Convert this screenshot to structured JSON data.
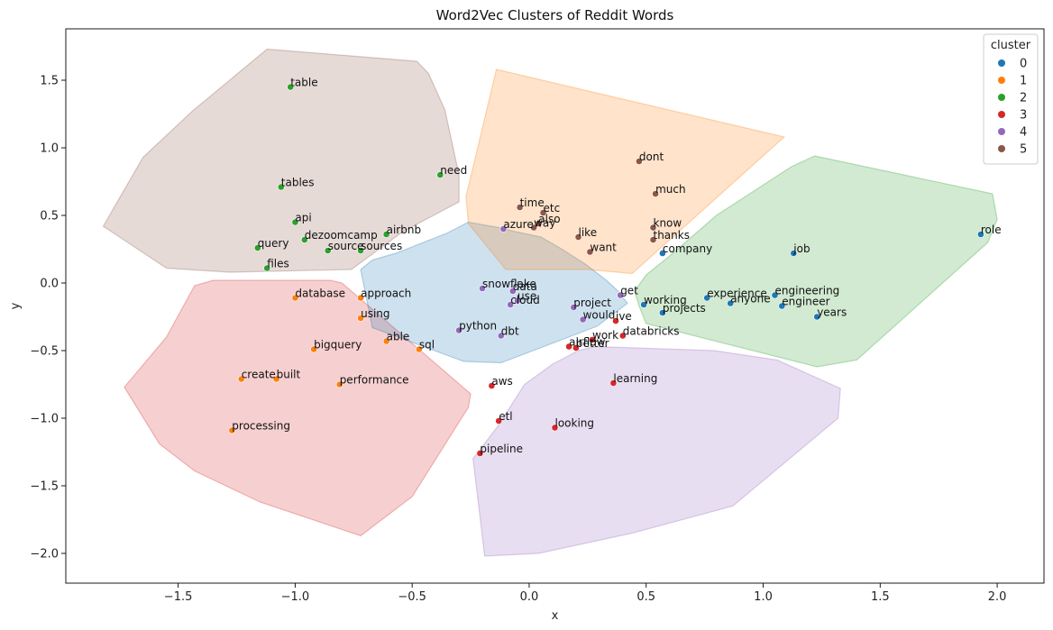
{
  "chart_data": {
    "type": "scatter",
    "title": "Word2Vec Clusters of Reddit Words",
    "xlabel": "x",
    "ylabel": "y",
    "xlim": [
      -1.98,
      2.2
    ],
    "ylim": [
      -2.22,
      1.88
    ],
    "xticks": [
      -1.5,
      -1.0,
      -0.5,
      0.0,
      0.5,
      1.0,
      1.5,
      2.0
    ],
    "xtick_labels": [
      "−1.5",
      "−1.0",
      "−0.5",
      "0.0",
      "0.5",
      "1.0",
      "1.5",
      "2.0"
    ],
    "yticks": [
      1.5,
      1.0,
      0.5,
      0.0,
      -0.5,
      -1.0,
      -1.5,
      -2.0
    ],
    "ytick_labels": [
      "1.5",
      "1.0",
      "0.5",
      "0.0",
      "−0.5",
      "−1.0",
      "−1.5",
      "−2.0"
    ],
    "grid": false,
    "legend": {
      "title": "cluster",
      "placement": "top-right",
      "entries": [
        "0",
        "1",
        "2",
        "3",
        "4",
        "5"
      ]
    },
    "cluster_colors": [
      "#1f77b4",
      "#ff7f0e",
      "#2ca02c",
      "#d62728",
      "#9467bd",
      "#8c564b"
    ],
    "hull_colors": [
      "#2ca02c",
      "#d62728",
      "#8c564b",
      "#9467bd",
      "#1f77b4",
      "#ff7f0e"
    ],
    "hulls": [
      [
        [
          1.22,
          0.94
        ],
        [
          1.98,
          0.66
        ],
        [
          2.0,
          0.47
        ],
        [
          1.96,
          0.3
        ],
        [
          1.4,
          -0.57
        ],
        [
          1.23,
          -0.62
        ],
        [
          0.5,
          -0.3
        ],
        [
          0.47,
          -0.17
        ],
        [
          0.45,
          -0.06
        ],
        [
          0.5,
          0.06
        ],
        [
          0.6,
          0.2
        ],
        [
          0.8,
          0.5
        ],
        [
          1.12,
          0.86
        ]
      ],
      [
        [
          -1.43,
          -0.02
        ],
        [
          -1.35,
          0.02
        ],
        [
          -0.85,
          0.02
        ],
        [
          -0.8,
          0.0
        ],
        [
          -0.25,
          -0.82
        ],
        [
          -0.26,
          -0.92
        ],
        [
          -0.5,
          -1.58
        ],
        [
          -0.72,
          -1.87
        ],
        [
          -1.15,
          -1.62
        ],
        [
          -1.43,
          -1.39
        ],
        [
          -1.58,
          -1.19
        ],
        [
          -1.73,
          -0.77
        ],
        [
          -1.55,
          -0.4
        ]
      ],
      [
        [
          -1.12,
          1.73
        ],
        [
          -0.48,
          1.64
        ],
        [
          -0.43,
          1.55
        ],
        [
          -0.36,
          1.28
        ],
        [
          -0.3,
          0.8
        ],
        [
          -0.3,
          0.6
        ],
        [
          -0.54,
          0.38
        ],
        [
          -0.76,
          0.1
        ],
        [
          -1.28,
          0.08
        ],
        [
          -1.55,
          0.11
        ],
        [
          -1.82,
          0.42
        ],
        [
          -1.65,
          0.93
        ],
        [
          -1.44,
          1.27
        ]
      ],
      [
        [
          -0.24,
          -1.3
        ],
        [
          -0.13,
          -1.05
        ],
        [
          -0.02,
          -0.75
        ],
        [
          0.1,
          -0.6
        ],
        [
          0.21,
          -0.5
        ],
        [
          0.28,
          -0.47
        ],
        [
          0.79,
          -0.5
        ],
        [
          1.06,
          -0.57
        ],
        [
          1.33,
          -0.78
        ],
        [
          1.32,
          -1.0
        ],
        [
          0.87,
          -1.65
        ],
        [
          0.44,
          -1.85
        ],
        [
          0.04,
          -2.0
        ],
        [
          -0.19,
          -2.02
        ]
      ],
      [
        [
          -0.67,
          0.17
        ],
        [
          -0.57,
          0.22
        ],
        [
          -0.35,
          0.37
        ],
        [
          -0.26,
          0.45
        ],
        [
          -0.13,
          0.41
        ],
        [
          -0.06,
          0.38
        ],
        [
          0.05,
          0.34
        ],
        [
          0.14,
          0.25
        ],
        [
          0.24,
          0.14
        ],
        [
          0.33,
          0.02
        ],
        [
          0.38,
          -0.06
        ],
        [
          0.42,
          -0.15
        ],
        [
          0.29,
          -0.32
        ],
        [
          0.26,
          -0.34
        ],
        [
          -0.12,
          -0.59
        ],
        [
          -0.28,
          -0.58
        ],
        [
          -0.67,
          -0.33
        ],
        [
          -0.72,
          0.1
        ]
      ],
      [
        [
          -0.14,
          1.58
        ],
        [
          1.09,
          1.08
        ],
        [
          0.44,
          0.07
        ],
        [
          0.25,
          0.1
        ],
        [
          -0.1,
          0.1
        ],
        [
          -0.26,
          0.44
        ],
        [
          -0.27,
          0.64
        ]
      ]
    ],
    "points": [
      {
        "label": "role",
        "x": 1.93,
        "y": 0.36,
        "cluster": 0
      },
      {
        "label": "job",
        "x": 1.13,
        "y": 0.22,
        "cluster": 0
      },
      {
        "label": "company",
        "x": 0.57,
        "y": 0.22,
        "cluster": 0
      },
      {
        "label": "experience",
        "x": 0.76,
        "y": -0.11,
        "cluster": 0
      },
      {
        "label": "engineering",
        "x": 1.05,
        "y": -0.09,
        "cluster": 0
      },
      {
        "label": "working",
        "x": 0.49,
        "y": -0.16,
        "cluster": 0
      },
      {
        "label": "anyone",
        "x": 0.86,
        "y": -0.15,
        "cluster": 0
      },
      {
        "label": "engineer",
        "x": 1.08,
        "y": -0.17,
        "cluster": 0
      },
      {
        "label": "projects",
        "x": 0.57,
        "y": -0.22,
        "cluster": 0
      },
      {
        "label": "years",
        "x": 1.23,
        "y": -0.25,
        "cluster": 0
      },
      {
        "label": "database",
        "x": -1.0,
        "y": -0.11,
        "cluster": 1
      },
      {
        "label": "approach",
        "x": -0.72,
        "y": -0.11,
        "cluster": 1
      },
      {
        "label": "using",
        "x": -0.72,
        "y": -0.26,
        "cluster": 1
      },
      {
        "label": "able",
        "x": -0.61,
        "y": -0.43,
        "cluster": 1
      },
      {
        "label": "bigquery",
        "x": -0.92,
        "y": -0.49,
        "cluster": 1
      },
      {
        "label": "sql",
        "x": -0.47,
        "y": -0.49,
        "cluster": 1
      },
      {
        "label": "create",
        "x": -1.23,
        "y": -0.71,
        "cluster": 1
      },
      {
        "label": "built",
        "x": -1.08,
        "y": -0.71,
        "cluster": 1
      },
      {
        "label": "performance",
        "x": -0.81,
        "y": -0.75,
        "cluster": 1
      },
      {
        "label": "processing",
        "x": -1.27,
        "y": -1.09,
        "cluster": 1
      },
      {
        "label": "table",
        "x": -1.02,
        "y": 1.45,
        "cluster": 2
      },
      {
        "label": "need",
        "x": -0.38,
        "y": 0.8,
        "cluster": 2
      },
      {
        "label": "tables",
        "x": -1.06,
        "y": 0.71,
        "cluster": 2
      },
      {
        "label": "api",
        "x": -1.0,
        "y": 0.45,
        "cluster": 2
      },
      {
        "label": "airbnb",
        "x": -0.61,
        "y": 0.36,
        "cluster": 2
      },
      {
        "label": "dezoomcamp",
        "x": -0.96,
        "y": 0.32,
        "cluster": 2
      },
      {
        "label": "query",
        "x": -1.16,
        "y": 0.26,
        "cluster": 2
      },
      {
        "label": "source",
        "x": -0.86,
        "y": 0.24,
        "cluster": 2
      },
      {
        "label": "sources",
        "x": -0.72,
        "y": 0.24,
        "cluster": 2
      },
      {
        "label": "files",
        "x": -1.12,
        "y": 0.11,
        "cluster": 2
      },
      {
        "label": "ive",
        "x": 0.37,
        "y": -0.28,
        "cluster": 3
      },
      {
        "label": "work",
        "x": 0.27,
        "y": -0.42,
        "cluster": 3
      },
      {
        "label": "databricks",
        "x": 0.4,
        "y": -0.39,
        "cluster": 3
      },
      {
        "label": "airflow",
        "x": 0.17,
        "y": -0.47,
        "cluster": 3
      },
      {
        "label": "better",
        "x": 0.2,
        "y": -0.48,
        "cluster": 3
      },
      {
        "label": "aws",
        "x": -0.16,
        "y": -0.76,
        "cluster": 3
      },
      {
        "label": "learning",
        "x": 0.36,
        "y": -0.74,
        "cluster": 3
      },
      {
        "label": "etl",
        "x": -0.13,
        "y": -1.02,
        "cluster": 3
      },
      {
        "label": "looking",
        "x": 0.11,
        "y": -1.07,
        "cluster": 3
      },
      {
        "label": "pipeline",
        "x": -0.21,
        "y": -1.26,
        "cluster": 3
      },
      {
        "label": "azure",
        "x": -0.11,
        "y": 0.4,
        "cluster": 4
      },
      {
        "label": "snowflake",
        "x": -0.2,
        "y": -0.04,
        "cluster": 4
      },
      {
        "label": "data",
        "x": -0.07,
        "y": -0.06,
        "cluster": 4
      },
      {
        "label": "use",
        "x": -0.05,
        "y": -0.13,
        "cluster": 4
      },
      {
        "label": "cloud",
        "x": -0.08,
        "y": -0.16,
        "cluster": 4
      },
      {
        "label": "get",
        "x": 0.39,
        "y": -0.09,
        "cluster": 4
      },
      {
        "label": "project",
        "x": 0.19,
        "y": -0.18,
        "cluster": 4
      },
      {
        "label": "would",
        "x": 0.23,
        "y": -0.27,
        "cluster": 4
      },
      {
        "label": "python",
        "x": -0.3,
        "y": -0.35,
        "cluster": 4
      },
      {
        "label": "dbt",
        "x": -0.12,
        "y": -0.39,
        "cluster": 4
      },
      {
        "label": "dont",
        "x": 0.47,
        "y": 0.9,
        "cluster": 5
      },
      {
        "label": "much",
        "x": 0.54,
        "y": 0.66,
        "cluster": 5
      },
      {
        "label": "time",
        "x": -0.04,
        "y": 0.56,
        "cluster": 5
      },
      {
        "label": "etc",
        "x": 0.06,
        "y": 0.52,
        "cluster": 5
      },
      {
        "label": "also",
        "x": 0.04,
        "y": 0.44,
        "cluster": 5
      },
      {
        "label": "way",
        "x": 0.02,
        "y": 0.41,
        "cluster": 5
      },
      {
        "label": "know",
        "x": 0.53,
        "y": 0.41,
        "cluster": 5
      },
      {
        "label": "like",
        "x": 0.21,
        "y": 0.34,
        "cluster": 5
      },
      {
        "label": "thanks",
        "x": 0.53,
        "y": 0.32,
        "cluster": 5
      },
      {
        "label": "want",
        "x": 0.26,
        "y": 0.23,
        "cluster": 5
      }
    ]
  }
}
